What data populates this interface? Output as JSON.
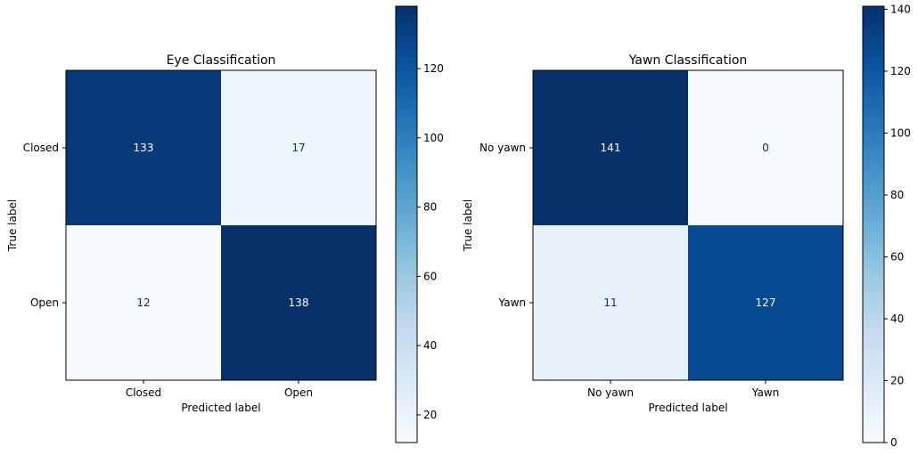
{
  "chart_data": [
    {
      "type": "heatmap",
      "title": "Eye Classification",
      "xlabel": "Predicted label",
      "ylabel": "True label",
      "x_categories": [
        "Closed",
        "Open"
      ],
      "y_categories": [
        "Closed",
        "Open"
      ],
      "values": [
        [
          133,
          17
        ],
        [
          12,
          138
        ]
      ],
      "colormap": "Blues",
      "color_range": [
        12,
        138
      ],
      "colorbar_ticks": [
        20,
        40,
        60,
        80,
        100,
        120
      ],
      "grid": false,
      "colorbar_position": "right"
    },
    {
      "type": "heatmap",
      "title": "Yawn Classification",
      "xlabel": "Predicted label",
      "ylabel": "True label",
      "x_categories": [
        "No yawn",
        "Yawn"
      ],
      "y_categories": [
        "No yawn",
        "Yawn"
      ],
      "values": [
        [
          141,
          0
        ],
        [
          11,
          127
        ]
      ],
      "colormap": "Blues",
      "color_range": [
        0,
        141
      ],
      "colorbar_ticks": [
        0,
        20,
        40,
        60,
        80,
        100,
        120,
        140
      ],
      "grid": false,
      "colorbar_position": "right"
    }
  ]
}
